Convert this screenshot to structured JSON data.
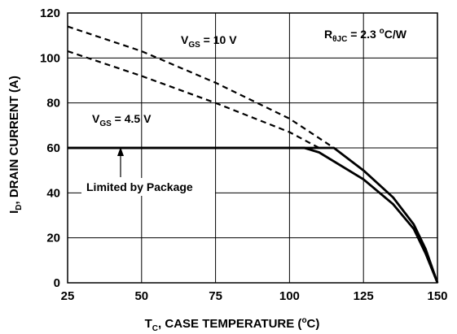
{
  "chart_data": {
    "type": "line",
    "xlabel": {
      "main": "T",
      "sub": "C",
      "rest": ", CASE TEMPERATURE (",
      "deg": "o",
      "unit": "C)"
    },
    "ylabel": {
      "main": "I",
      "sub": "D",
      "rest": ", DRAIN CURRENT (A)"
    },
    "xlim": [
      25,
      150
    ],
    "ylim": [
      0,
      120
    ],
    "xticks": [
      25,
      50,
      75,
      100,
      125,
      150
    ],
    "yticks": [
      0,
      20,
      40,
      60,
      80,
      100,
      120
    ],
    "grid": true,
    "series": [
      {
        "style": "dashed",
        "x": [
          25,
          50,
          75,
          100,
          115
        ],
        "y": [
          114,
          103,
          89,
          73,
          60
        ]
      },
      {
        "style": "dashed",
        "x": [
          25,
          50,
          75,
          100,
          110
        ],
        "y": [
          103,
          92,
          80,
          67,
          60
        ]
      },
      {
        "style": "solid",
        "x": [
          25,
          115,
          125,
          135,
          142,
          146,
          150
        ],
        "y": [
          60,
          60,
          50,
          38,
          26,
          15,
          0
        ]
      },
      {
        "style": "solid",
        "x": [
          25,
          105,
          110,
          125,
          135,
          142,
          146,
          150
        ],
        "y": [
          60,
          60,
          58,
          46,
          35,
          24,
          13,
          0
        ]
      }
    ],
    "annotations": {
      "vgs10": {
        "pre": "V",
        "sub": "GS",
        "post": " = 10 V"
      },
      "vgs45": {
        "pre": "V",
        "sub": "GS",
        "post": " = 4.5 V"
      },
      "rth": {
        "pre": "R",
        "sub": "θJC",
        "post": " = 2.3 ",
        "deg": "o",
        "unit": "C/W"
      },
      "package": "Limited by Package"
    }
  }
}
